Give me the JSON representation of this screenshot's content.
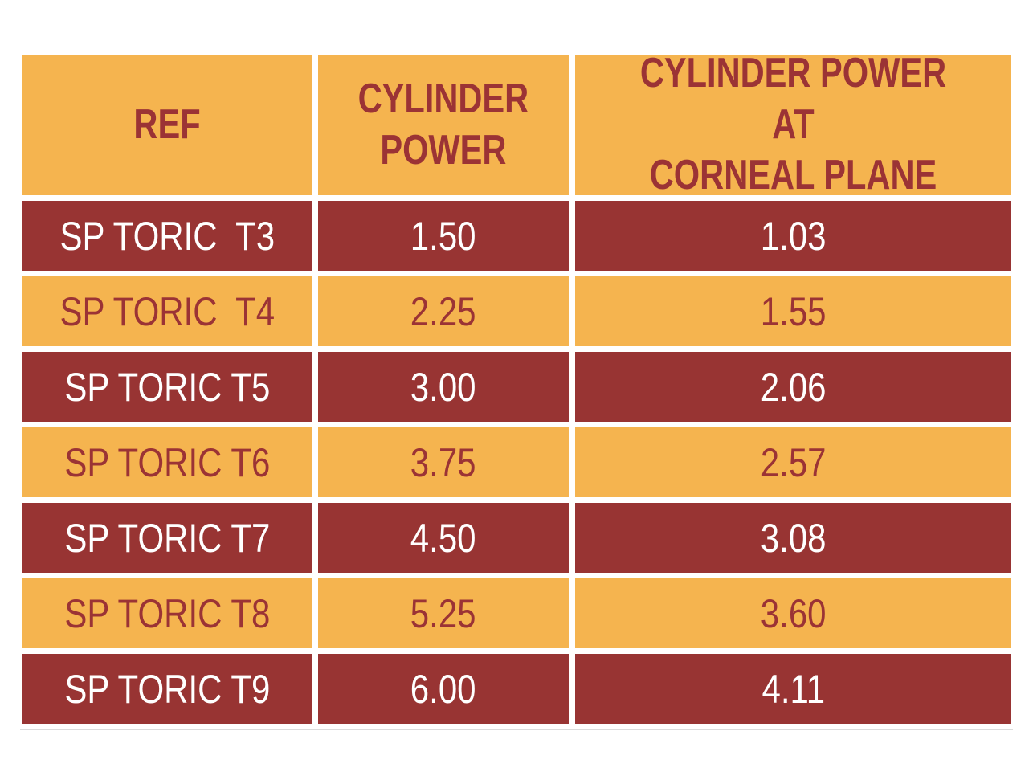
{
  "colors": {
    "orange": "#F5B44F",
    "maroon": "#983433",
    "header_text": "#9B3335",
    "light_text": "#FFFFFF",
    "bottom_rule": "#DBDBDB",
    "page_background": "#FFFFFF"
  },
  "chart_data": {
    "type": "table",
    "title": "",
    "columns": [
      "REF",
      "CYLINDER POWER",
      "CYLINDER POWER AT CORNEAL PLANE"
    ],
    "header_display": {
      "ref": "REF",
      "cylinder_power": "CYLINDER\nPOWER",
      "corneal_plane": "CYLINDER POWER AT\nCORNEAL PLANE"
    },
    "rows": [
      {
        "ref": "SP TORIC  T3",
        "cylinder_power": "1.50",
        "corneal_plane": "1.03"
      },
      {
        "ref": "SP TORIC  T4",
        "cylinder_power": "2.25",
        "corneal_plane": "1.55"
      },
      {
        "ref": "SP TORIC T5",
        "cylinder_power": "3.00",
        "corneal_plane": "2.06"
      },
      {
        "ref": "SP TORIC T6",
        "cylinder_power": "3.75",
        "corneal_plane": "2.57"
      },
      {
        "ref": "SP TORIC T7",
        "cylinder_power": "4.50",
        "corneal_plane": "3.08"
      },
      {
        "ref": "SP TORIC T8",
        "cylinder_power": "5.25",
        "corneal_plane": "3.60"
      },
      {
        "ref": "SP TORIC T9",
        "cylinder_power": "6.00",
        "corneal_plane": "4.11"
      }
    ],
    "layout": {
      "row_style_alternation": [
        "maroon",
        "orange"
      ],
      "header_background": "orange",
      "grid_gap_color": "white"
    }
  }
}
